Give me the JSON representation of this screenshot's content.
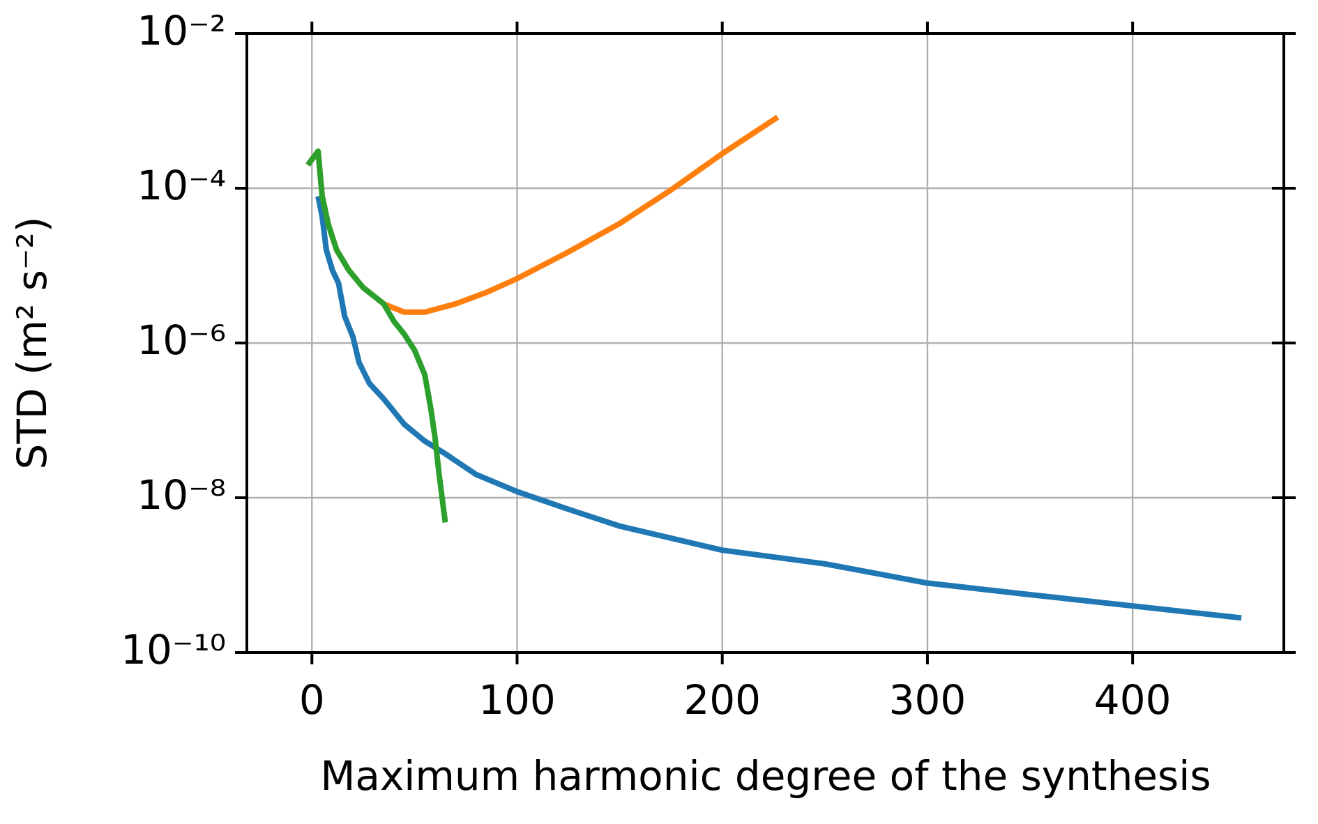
{
  "chart_data": {
    "type": "line",
    "xlabel": "Maximum harmonic degree of the synthesis",
    "ylabel": "STD (m² s⁻²)",
    "xlim": [
      -31.7,
      473.7
    ],
    "ylim": [
      1e-10,
      0.01
    ],
    "log_y": true,
    "grid": true,
    "xticks": [
      0,
      100,
      200,
      300,
      400
    ],
    "yticks": [
      {
        "value": 1e-10,
        "label": "10⁻¹⁰"
      },
      {
        "value": 1e-08,
        "label": "10⁻⁸"
      },
      {
        "value": 1e-06,
        "label": "10⁻⁶"
      },
      {
        "value": 0.0001,
        "label": "10⁻⁴"
      },
      {
        "value": 0.01,
        "label": "10⁻²"
      }
    ],
    "series": [
      {
        "color": "#1f77b4",
        "x": [
          3,
          5,
          7,
          10,
          13,
          16,
          20,
          23,
          28,
          35,
          40,
          45,
          55,
          65,
          80,
          100,
          125,
          150,
          200,
          250,
          300,
          350,
          400,
          453
        ],
        "values": [
          7.9e-05,
          4.3e-05,
          1.6e-05,
          8.7e-06,
          5.9e-06,
          2.2e-06,
          1.2e-06,
          5.6e-07,
          3e-07,
          1.9e-07,
          1.3e-07,
          8.9e-08,
          5.4e-08,
          3.7e-08,
          2e-08,
          1.2e-08,
          7.1e-09,
          4.3e-09,
          2.1e-09,
          1.4e-09,
          7.9e-10,
          5.6e-10,
          4e-10,
          2.8e-10
        ]
      },
      {
        "color": "#ff7f0e",
        "x": [
          -2,
          3,
          5,
          8,
          12,
          18,
          25,
          35,
          45,
          55,
          70,
          85,
          100,
          125,
          150,
          175,
          200,
          227
        ],
        "values": [
          0.0002,
          0.0003,
          7.9e-05,
          3.4e-05,
          1.6e-05,
          8.7e-06,
          5.2e-06,
          3.2e-06,
          2.5e-06,
          2.5e-06,
          3.2e-06,
          4.5e-06,
          6.8e-06,
          1.5e-05,
          3.5e-05,
          9.5e-05,
          0.00028,
          0.00083
        ]
      },
      {
        "color": "#2ca02c",
        "x": [
          -2,
          3,
          5,
          8,
          12,
          18,
          25,
          35,
          40,
          45,
          50,
          55,
          58,
          60,
          62,
          65
        ],
        "values": [
          0.0002,
          0.0003,
          7.9e-05,
          3.4e-05,
          1.6e-05,
          8.7e-06,
          5.2e-06,
          3.2e-06,
          1.9e-06,
          1.3e-06,
          8.1e-07,
          3.9e-07,
          1.4e-07,
          6e-08,
          2e-08,
          4.8e-09
        ]
      }
    ]
  }
}
